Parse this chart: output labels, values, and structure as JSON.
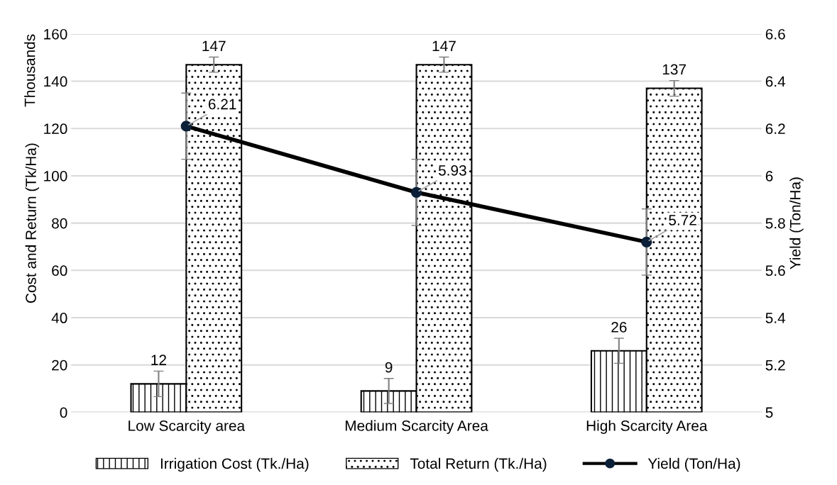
{
  "chart_data": {
    "type": "bar",
    "categories": [
      "Low Scarcity area",
      "Medium Scarcity Area",
      "High Scarcity Area"
    ],
    "ylabel": "Cost and Return (Tk/Ha)",
    "y2label": "Yield (Ton/Ha)",
    "annotations": [
      "Thousands"
    ],
    "ylim": [
      0,
      160
    ],
    "yticks": [
      0,
      20,
      40,
      60,
      80,
      100,
      120,
      140,
      160
    ],
    "y2lim": [
      5,
      6.6
    ],
    "y2ticks": [
      5,
      {
        "value": 5.2,
        "label": "5.2"
      },
      {
        "value": 5.4,
        "label": "5.4"
      },
      {
        "value": 5.6,
        "label": "5.6"
      },
      {
        "value": 5.8,
        "label": "5.8"
      },
      6,
      {
        "value": 6.2,
        "label": "6.2"
      },
      {
        "value": 6.4,
        "label": "6.4"
      },
      {
        "value": 6.6,
        "label": "6.6"
      }
    ],
    "grid": "y",
    "legend": "bottom",
    "data_labels": true,
    "series": [
      {
        "name": "Irrigation Cost (Tk./Ha)",
        "color": "#000000",
        "values": [
          12,
          9,
          26
        ],
        "errors": [
          5.4,
          5.3,
          5.3
        ]
      },
      {
        "name": "Total Return (Tk./Ha)",
        "color": "#000000",
        "values": [
          147,
          147,
          137
        ],
        "errors": [
          3.2,
          3.2,
          3.3
        ]
      },
      {
        "name": "Yield (Ton/Ha)",
        "type": "line",
        "axis": "y2",
        "color": "#000000",
        "marker": "circle",
        "line_style": "solid",
        "values": [
          6.21,
          5.93,
          5.72
        ],
        "errors": [
          0.14,
          0.14,
          0.14
        ]
      }
    ]
  }
}
